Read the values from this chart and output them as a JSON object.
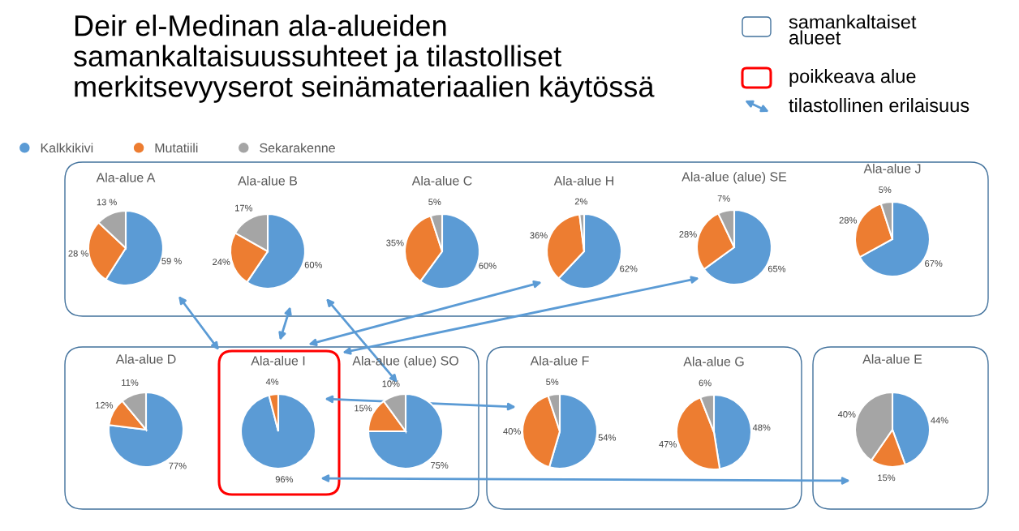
{
  "chart_data": [
    {
      "type": "other",
      "title": "Deir el-Medinan ala-alueiden samankaltaisuussuhteet ja tilastolliset merkitsevyyserot seinämateriaalien käytössä",
      "annotations": [
        "samankaltaiset alueet",
        "poikkeava alue",
        "tilastollinen erilaisuus"
      ]
    },
    {
      "type": "pie",
      "title": "Ala-alue A",
      "categories": [
        "Kalkkikivi",
        "Mutatiili",
        "Sekarakenne"
      ],
      "values": [
        59,
        28,
        13
      ],
      "colors": [
        "#5b9bd5",
        "#ed7d31",
        "#a5a5a5"
      ],
      "value_labels": [
        "59 %",
        "28 %",
        "13 %"
      ],
      "legend": "top"
    },
    {
      "type": "pie",
      "title": "Ala-alue B",
      "categories": [
        null,
        null,
        null
      ],
      "values": [
        60,
        24,
        17
      ],
      "colors": [
        "#5b9bd5",
        "#ed7d31",
        "#a5a5a5"
      ],
      "value_labels": [
        "60%",
        "24%",
        "17%"
      ]
    },
    {
      "type": "pie",
      "title": "Ala-alue C",
      "categories": [
        null,
        null,
        null
      ],
      "values": [
        60,
        35,
        5
      ],
      "colors": [
        "#5b9bd5",
        "#ed7d31",
        "#a5a5a5"
      ],
      "value_labels": [
        "60%",
        "35%",
        "5%"
      ]
    },
    {
      "type": "pie",
      "title": "Ala-alue H",
      "categories": [
        null,
        null,
        null
      ],
      "values": [
        62,
        36,
        2
      ],
      "colors": [
        "#5b9bd5",
        "#ed7d31",
        "#a5a5a5"
      ],
      "value_labels": [
        "62%",
        "36%",
        "2%"
      ]
    },
    {
      "type": "pie",
      "title": "Ala-alue (alue) SE",
      "categories": [
        null,
        null,
        null
      ],
      "values": [
        65,
        28,
        7
      ],
      "colors": [
        "#5b9bd5",
        "#ed7d31",
        "#a5a5a5"
      ],
      "value_labels": [
        "65%",
        "28%",
        "7%"
      ]
    },
    {
      "type": "pie",
      "title": "Ala-alue J",
      "categories": [
        null,
        null,
        null
      ],
      "values": [
        67,
        28,
        5
      ],
      "colors": [
        "#5b9bd5",
        "#ed7d31",
        "#a5a5a5"
      ],
      "value_labels": [
        "67%",
        "28%",
        "5%"
      ]
    },
    {
      "type": "pie",
      "title": "Ala-alue D",
      "categories": [
        null,
        null,
        null
      ],
      "values": [
        77,
        12,
        11
      ],
      "colors": [
        "#5b9bd5",
        "#ed7d31",
        "#a5a5a5"
      ],
      "value_labels": [
        "77%",
        "12%",
        "11%"
      ]
    },
    {
      "type": "pie",
      "title": "Ala-alue I",
      "categories": [
        null,
        null
      ],
      "values": [
        96,
        4
      ],
      "colors": [
        "#5b9bd5",
        "#ed7d31"
      ],
      "value_labels": [
        "96%",
        "4%"
      ]
    },
    {
      "type": "pie",
      "title": "Ala-alue (alue) SO",
      "categories": [
        null,
        null,
        null
      ],
      "values": [
        75,
        15,
        10
      ],
      "colors": [
        "#5b9bd5",
        "#ed7d31",
        "#a5a5a5"
      ],
      "value_labels": [
        "75%",
        "15%",
        "10%"
      ]
    },
    {
      "type": "pie",
      "title": "Ala-alue F",
      "categories": [
        null,
        null,
        null
      ],
      "values": [
        54,
        40,
        5
      ],
      "colors": [
        "#5b9bd5",
        "#ed7d31",
        "#a5a5a5"
      ],
      "value_labels": [
        "54%",
        "40%",
        "5%"
      ]
    },
    {
      "type": "pie",
      "title": "Ala-alue G",
      "categories": [
        null,
        null,
        null
      ],
      "values": [
        48,
        47,
        6
      ],
      "colors": [
        "#5b9bd5",
        "#ed7d31",
        "#a5a5a5"
      ],
      "value_labels": [
        "48%",
        "47%",
        "6%"
      ]
    },
    {
      "type": "pie",
      "title": "Ala-alue E",
      "categories": [
        null,
        null,
        null
      ],
      "values": [
        44,
        15,
        40
      ],
      "colors": [
        "#5b9bd5",
        "#ed7d31",
        "#a5a5a5"
      ],
      "value_labels": [
        "44%",
        "15%",
        "40%"
      ]
    }
  ]
}
